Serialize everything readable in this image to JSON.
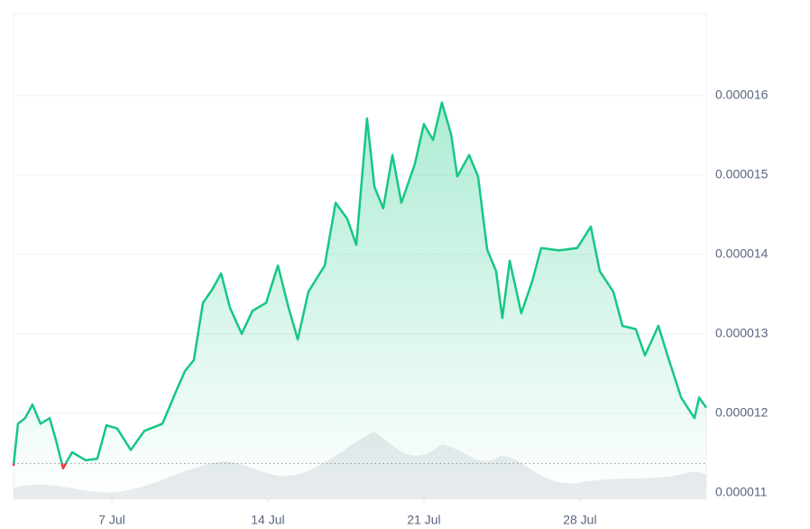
{
  "chart_data": {
    "type": "line",
    "x": [
      2.59,
      2.79,
      3.11,
      3.44,
      3.8,
      4.21,
      4.49,
      4.81,
      5.22,
      5.83,
      6.35,
      6.76,
      7.24,
      7.85,
      8.46,
      9.27,
      9.87,
      10.28,
      10.68,
      11.09,
      11.49,
      11.9,
      12.3,
      12.83,
      13.31,
      13.92,
      14.45,
      14.93,
      15.34,
      15.82,
      16.55,
      17.04,
      17.56,
      17.97,
      18.45,
      18.78,
      19.18,
      19.59,
      19.99,
      20.6,
      21.0,
      21.41,
      21.81,
      22.22,
      22.5,
      23.03,
      23.43,
      23.84,
      24.24,
      24.52,
      24.85,
      25.37,
      25.86,
      26.26,
      27.07,
      27.88,
      28.49,
      28.89,
      29.5,
      29.91,
      30.51,
      30.92,
      31.52,
      31.93,
      32.54,
      33.14,
      33.35,
      33.67
    ],
    "series": [
      {
        "color": "#16c784",
        "below_color": "#ea3943",
        "values": [
          1.134e-05,
          1.187e-05,
          1.194e-05,
          1.211e-05,
          1.187e-05,
          1.194e-05,
          1.167e-05,
          1.131e-05,
          1.151e-05,
          1.141e-05,
          1.143e-05,
          1.185e-05,
          1.181e-05,
          1.154e-05,
          1.178e-05,
          1.187e-05,
          1.227e-05,
          1.253e-05,
          1.267e-05,
          1.339e-05,
          1.355e-05,
          1.376e-05,
          1.333e-05,
          1.3e-05,
          1.329e-05,
          1.339e-05,
          1.386e-05,
          1.333e-05,
          1.293e-05,
          1.353e-05,
          1.386e-05,
          1.465e-05,
          1.445e-05,
          1.412e-05,
          1.571e-05,
          1.485e-05,
          1.458e-05,
          1.525e-05,
          1.465e-05,
          1.514e-05,
          1.564e-05,
          1.544e-05,
          1.591e-05,
          1.551e-05,
          1.498e-05,
          1.525e-05,
          1.498e-05,
          1.406e-05,
          1.379e-05,
          1.32e-05,
          1.392e-05,
          1.326e-05,
          1.366e-05,
          1.408e-05,
          1.405e-05,
          1.408e-05,
          1.435e-05,
          1.379e-05,
          1.353e-05,
          1.31e-05,
          1.306e-05,
          1.273e-05,
          1.31e-05,
          1.273e-05,
          1.22e-05,
          1.194e-05,
          1.22e-05,
          1.207e-05
        ]
      }
    ],
    "reference_line": 1.137e-05,
    "xlim": [
      2.59,
      33.67
    ],
    "xticks": [
      {
        "value": 7,
        "label": "7 Jul"
      },
      {
        "value": 14,
        "label": "14 Jul"
      },
      {
        "value": 21,
        "label": "21 Jul"
      },
      {
        "value": 28,
        "label": "28 Jul"
      }
    ],
    "ylim": [
      1.092e-05,
      1.703e-05
    ],
    "yticks": [
      1.1e-05,
      1.2e-05,
      1.3e-05,
      1.4e-05,
      1.5e-05,
      1.6e-05
    ],
    "grid": true
  }
}
